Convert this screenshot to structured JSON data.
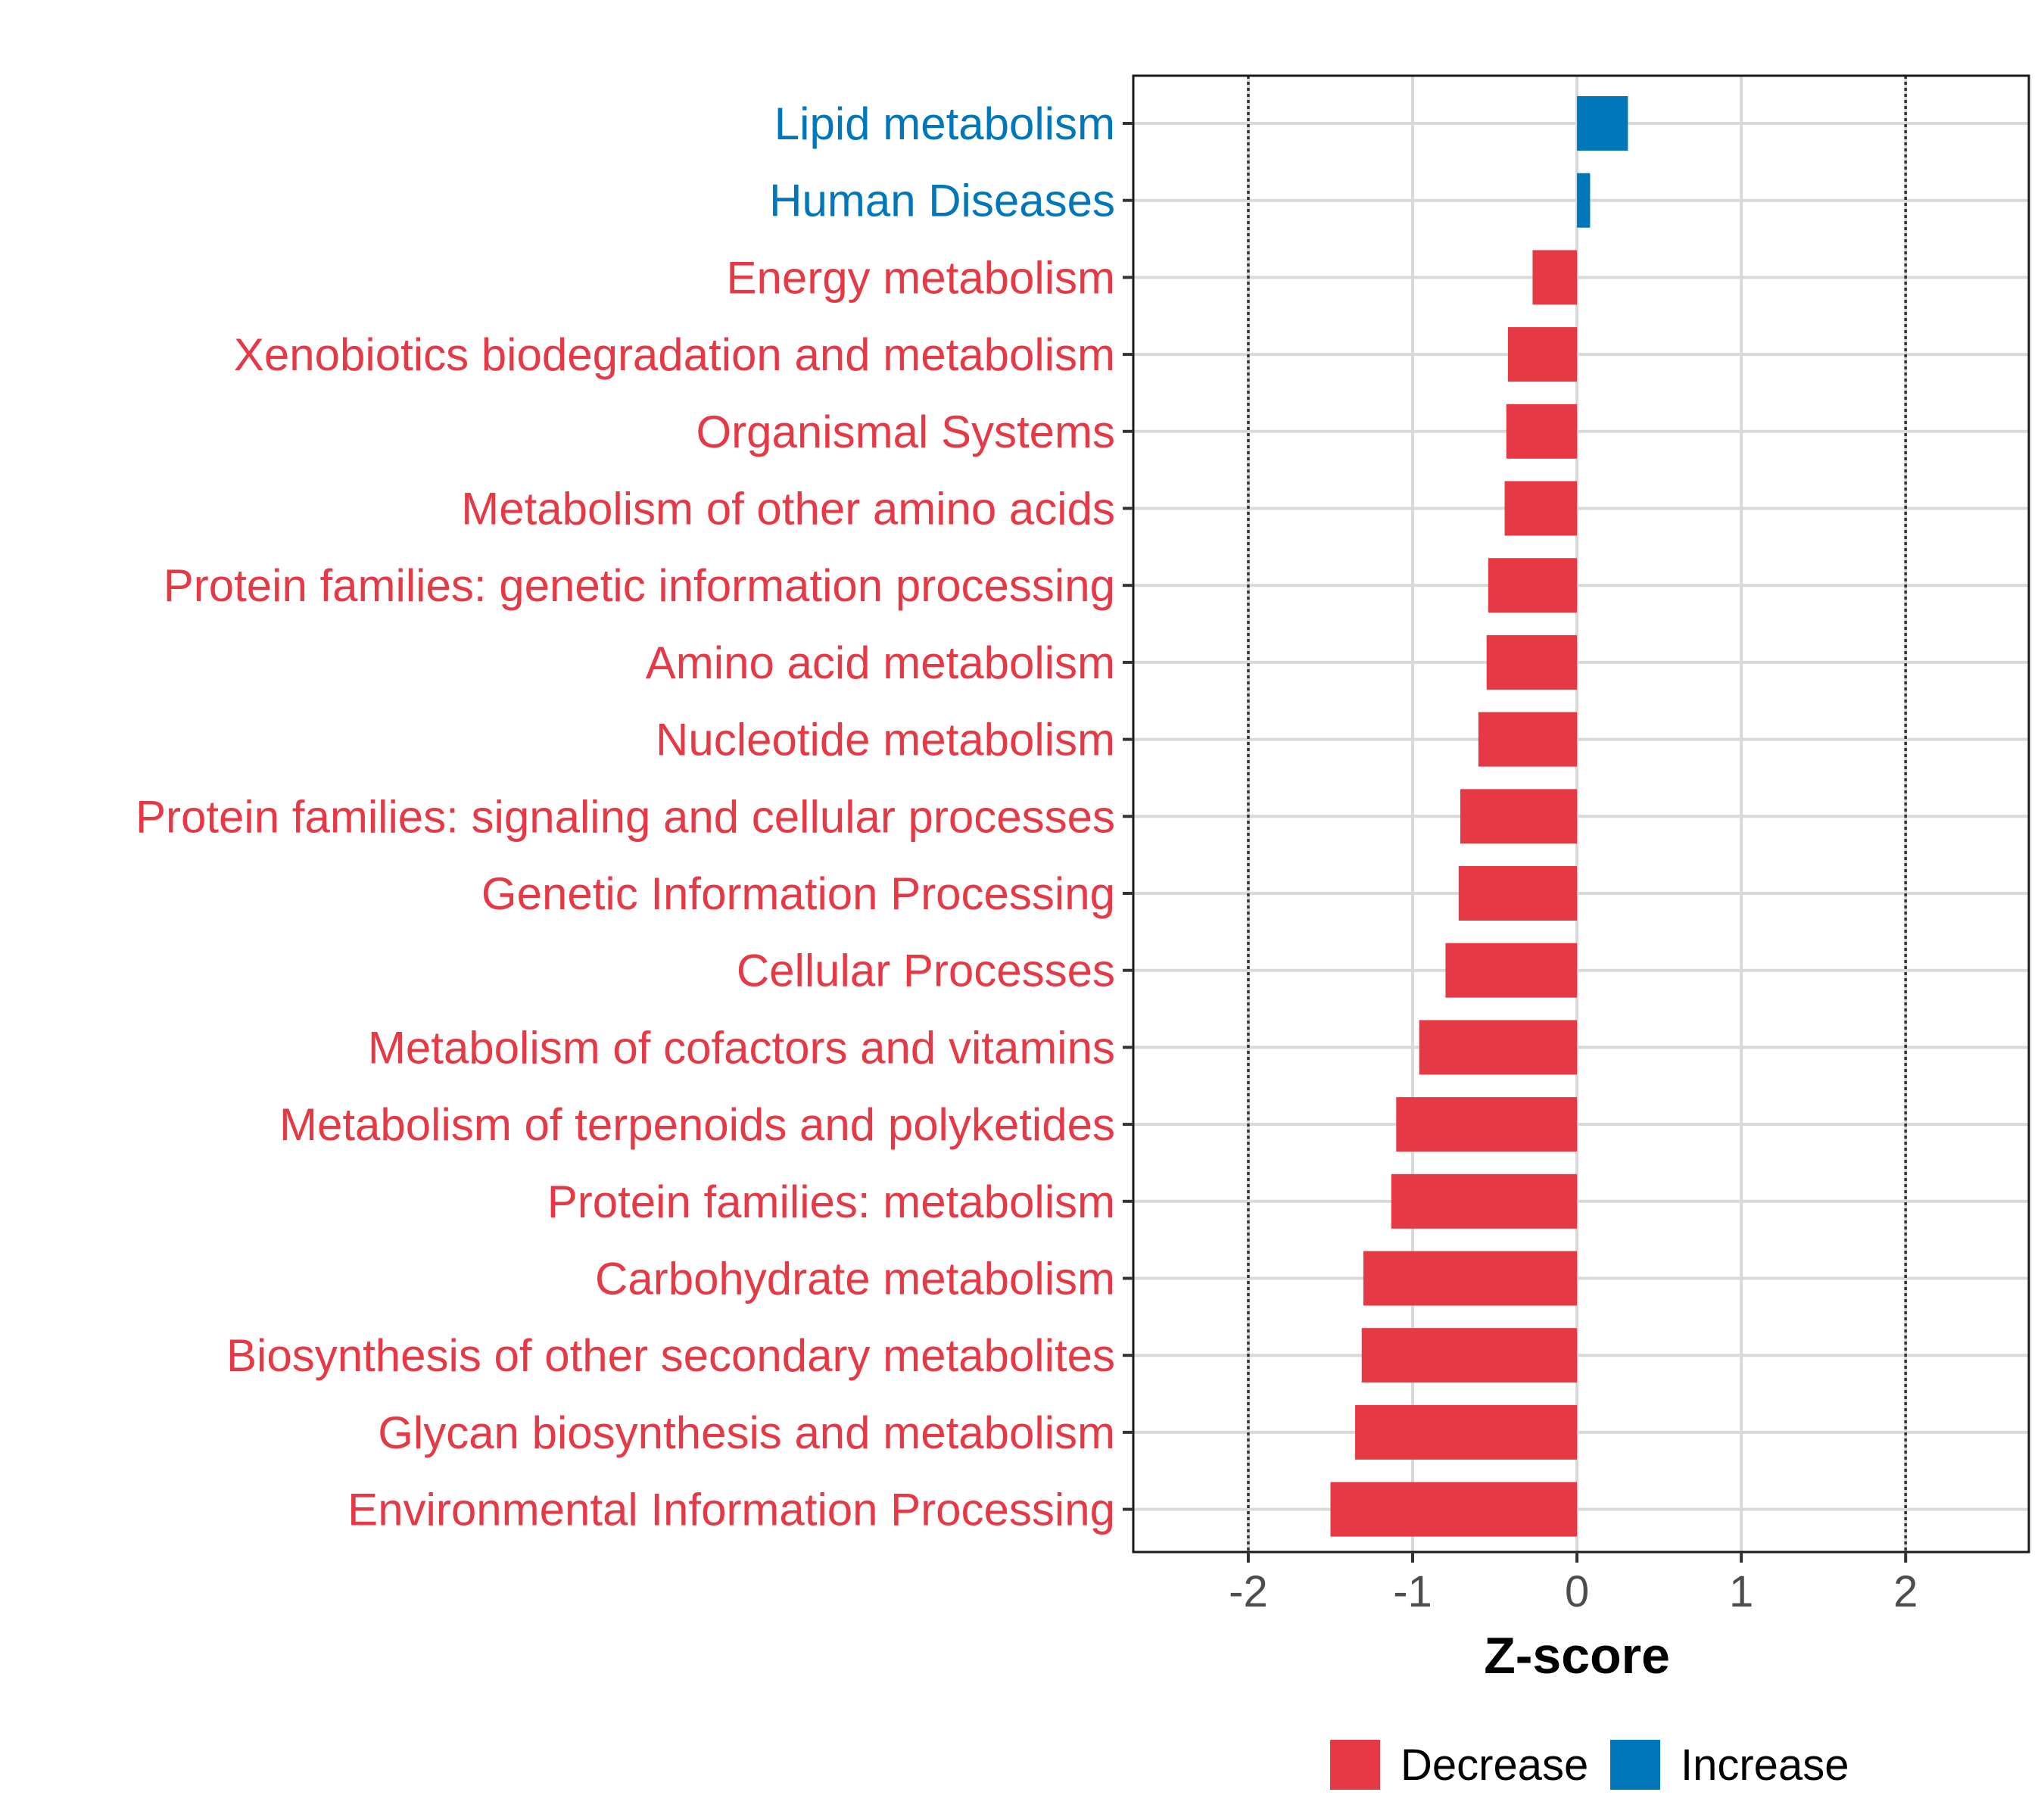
{
  "colors": {
    "decrease": "#E63946",
    "increase": "#0077BB",
    "grid": "#D9D9D9",
    "axis": "#1a1a1a",
    "ref_line": "#333333"
  },
  "chart_data": {
    "type": "bar",
    "orientation": "horizontal",
    "xlabel": "Z-score",
    "xlim": [
      -2.7,
      2.75
    ],
    "x_ticks": [
      -2,
      -1,
      0,
      1,
      2
    ],
    "x_tick_labels": [
      "-2",
      "-1",
      "0",
      "1",
      "2"
    ],
    "reference_lines": [
      -2,
      2
    ],
    "categories": [
      "Lipid metabolism",
      "Human Diseases",
      "Energy metabolism",
      "Xenobiotics biodegradation and metabolism",
      "Organismal Systems",
      "Metabolism of other amino acids",
      "Protein families: genetic information processing",
      "Amino acid metabolism",
      "Nucleotide metabolism",
      "Protein families: signaling and cellular processes",
      "Genetic Information Processing",
      "Cellular Processes",
      "Metabolism of cofactors and vitamins",
      "Metabolism of terpenoids and polyketides",
      "Protein families: metabolism",
      "Carbohydrate metabolism",
      "Biosynthesis of other secondary metabolites",
      "Glycan biosynthesis and metabolism",
      "Environmental Information Processing"
    ],
    "values": [
      0.31,
      0.08,
      -0.27,
      -0.42,
      -0.43,
      -0.44,
      -0.54,
      -0.55,
      -0.6,
      -0.71,
      -0.72,
      -0.8,
      -0.96,
      -1.1,
      -1.13,
      -1.3,
      -1.31,
      -1.35,
      -1.5
    ],
    "groups": [
      "Increase",
      "Increase",
      "Decrease",
      "Decrease",
      "Decrease",
      "Decrease",
      "Decrease",
      "Decrease",
      "Decrease",
      "Decrease",
      "Decrease",
      "Decrease",
      "Decrease",
      "Decrease",
      "Decrease",
      "Decrease",
      "Decrease",
      "Decrease",
      "Decrease"
    ],
    "legend": [
      {
        "label": "Decrease",
        "color": "#E63946"
      },
      {
        "label": "Increase",
        "color": "#0077BB"
      }
    ],
    "legend_position": "bottom"
  }
}
